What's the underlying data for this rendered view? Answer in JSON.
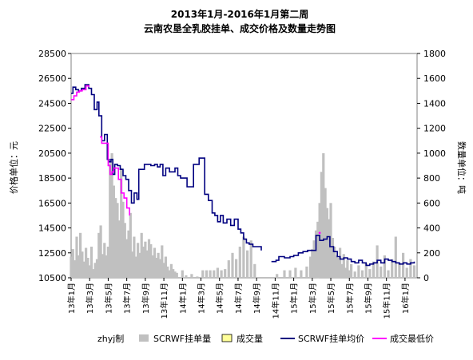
{
  "chart_data": {
    "type": "bar+line",
    "title_line1": "2013年1月-2016年1月第二周",
    "title_line2": "云南农垦全乳胶挂单、成交价格及数量走势图",
    "ylabel_left": "价格单位：元",
    "ylabel_right": "数量单位：吨",
    "y_left_range": [
      10500,
      28500
    ],
    "y_left_ticks": [
      "28500",
      "26500",
      "24500",
      "22500",
      "20500",
      "18500",
      "16500",
      "14500",
      "12500",
      "10500"
    ],
    "y_right_range": [
      0,
      1800
    ],
    "y_right_ticks": [
      "1800",
      "1600",
      "1400",
      "1200",
      "1000",
      "800",
      "600",
      "400",
      "200",
      "0"
    ],
    "x_ticks": [
      "13年1月",
      "13年3月",
      "13年5月",
      "13年7月",
      "13年9月",
      "13年11月",
      "14年1月",
      "14年3月",
      "14年5月",
      "14年7月",
      "14年9月",
      "14年11月",
      "15年1月",
      "15年3月",
      "15年5月",
      "15年7月",
      "15年9月",
      "15年11月",
      "16年1月"
    ],
    "legend": {
      "watermark": "zhyj制",
      "items": [
        {
          "name": "SCRWF挂单量",
          "color": "#c0c0c0",
          "kind": "bar"
        },
        {
          "name": "成交量",
          "color": "#ffff99",
          "kind": "bar"
        },
        {
          "name": "SCRWF挂单均价",
          "color": "#000080",
          "kind": "line"
        },
        {
          "name": "成交最低价",
          "color": "#ff00ff",
          "kind": "line"
        }
      ]
    },
    "series_listing_avg_price": [
      [
        0,
        25300
      ],
      [
        0.2,
        25800
      ],
      [
        0.5,
        25600
      ],
      [
        0.8,
        25500
      ],
      [
        1.1,
        25700
      ],
      [
        1.5,
        26000
      ],
      [
        1.9,
        25700
      ],
      [
        2.2,
        25200
      ],
      [
        2.5,
        24000
      ],
      [
        2.8,
        24600
      ],
      [
        3.0,
        23500
      ],
      [
        3.3,
        21500
      ],
      [
        3.6,
        22000
      ],
      [
        3.9,
        20000
      ],
      [
        4.1,
        19800
      ],
      [
        4.3,
        20000
      ],
      [
        4.5,
        18800
      ],
      [
        4.7,
        19600
      ],
      [
        5.0,
        19500
      ],
      [
        5.3,
        19200
      ],
      [
        5.6,
        18700
      ],
      [
        5.9,
        18400
      ],
      [
        6.2,
        17500
      ],
      [
        6.5,
        16500
      ],
      [
        6.8,
        17300
      ],
      [
        7.1,
        16800
      ],
      [
        7.3,
        19200
      ],
      [
        7.6,
        19200
      ],
      [
        7.9,
        19600
      ],
      [
        8.2,
        19600
      ],
      [
        8.6,
        19500
      ],
      [
        9.0,
        19600
      ],
      [
        9.3,
        19400
      ],
      [
        9.6,
        19600
      ],
      [
        9.9,
        18700
      ],
      [
        10.2,
        19300
      ],
      [
        10.6,
        19000
      ],
      [
        10.9,
        19000
      ],
      [
        11.2,
        19300
      ],
      [
        11.5,
        18700
      ],
      [
        11.8,
        18500
      ],
      [
        12.5,
        17800
      ],
      [
        13.2,
        19600
      ],
      [
        13.8,
        20100
      ],
      [
        14.4,
        17200
      ],
      [
        14.8,
        16700
      ],
      [
        15.2,
        15700
      ],
      [
        15.5,
        15500
      ],
      [
        15.8,
        15000
      ],
      [
        16.1,
        15500
      ],
      [
        16.4,
        14900
      ],
      [
        16.8,
        15200
      ],
      [
        17.2,
        14700
      ],
      [
        17.6,
        15200
      ],
      [
        18.0,
        14400
      ],
      [
        18.3,
        14100
      ],
      [
        18.6,
        13600
      ],
      [
        18.9,
        13300
      ],
      [
        19.2,
        13200
      ],
      [
        19.6,
        13000
      ],
      [
        20.5,
        12700
      ],
      [
        21.6,
        11800
      ],
      [
        22.1,
        11900
      ],
      [
        22.4,
        12200
      ],
      [
        23.0,
        12100
      ],
      [
        23.6,
        12200
      ],
      [
        24.0,
        12300
      ],
      [
        24.5,
        12500
      ],
      [
        25.0,
        12600
      ],
      [
        25.5,
        12700
      ],
      [
        26.0,
        12700
      ],
      [
        26.4,
        13900
      ],
      [
        26.8,
        13500
      ],
      [
        27.2,
        13600
      ],
      [
        27.6,
        13800
      ],
      [
        27.9,
        13000
      ],
      [
        28.3,
        12600
      ],
      [
        28.7,
        12200
      ],
      [
        29.0,
        12000
      ],
      [
        29.4,
        12100
      ],
      [
        29.8,
        12000
      ],
      [
        30.2,
        11800
      ],
      [
        30.6,
        11700
      ],
      [
        31.0,
        11900
      ],
      [
        31.4,
        11700
      ],
      [
        31.8,
        11500
      ],
      [
        32.2,
        11600
      ],
      [
        32.6,
        11700
      ],
      [
        33.0,
        11900
      ],
      [
        33.4,
        11700
      ],
      [
        33.8,
        12000
      ],
      [
        34.2,
        11900
      ],
      [
        34.6,
        11800
      ],
      [
        35.0,
        11700
      ],
      [
        35.4,
        11600
      ],
      [
        35.8,
        11700
      ],
      [
        36.2,
        11600
      ],
      [
        36.6,
        11700
      ],
      [
        37.0,
        11800
      ]
    ],
    "series_min_deal_price": [
      [
        0.0,
        24800
      ],
      [
        0.3,
        25100
      ],
      [
        0.6,
        25400
      ],
      [
        0.9,
        25500
      ],
      [
        1.2,
        25600
      ],
      [
        1.6,
        25900
      ],
      [
        1.9,
        25800
      ],
      [
        3.1,
        21800
      ],
      [
        3.3,
        21300
      ],
      [
        4.0,
        19500
      ],
      [
        4.2,
        18800
      ],
      [
        4.4,
        19000
      ],
      [
        4.6,
        19300
      ],
      [
        5.1,
        18400
      ],
      [
        5.4,
        17300
      ],
      [
        5.7,
        16900
      ],
      [
        6.0,
        16100
      ],
      [
        6.3,
        15500
      ],
      [
        26.8,
        14100
      ]
    ],
    "series_listing_volume": [
      [
        0.0,
        170
      ],
      [
        0.2,
        230
      ],
      [
        0.4,
        140
      ],
      [
        0.6,
        330
      ],
      [
        0.8,
        180
      ],
      [
        1.0,
        360
      ],
      [
        1.2,
        210
      ],
      [
        1.4,
        130
      ],
      [
        1.6,
        240
      ],
      [
        1.8,
        160
      ],
      [
        2.0,
        100
      ],
      [
        2.2,
        250
      ],
      [
        2.4,
        70
      ],
      [
        2.6,
        120
      ],
      [
        2.8,
        150
      ],
      [
        3.0,
        360
      ],
      [
        3.2,
        420
      ],
      [
        3.4,
        190
      ],
      [
        3.6,
        280
      ],
      [
        3.8,
        180
      ],
      [
        4.0,
        250
      ],
      [
        4.2,
        920
      ],
      [
        4.4,
        1000
      ],
      [
        4.6,
        740
      ],
      [
        4.8,
        640
      ],
      [
        5.0,
        600
      ],
      [
        5.2,
        460
      ],
      [
        5.4,
        880
      ],
      [
        5.6,
        610
      ],
      [
        5.8,
        440
      ],
      [
        6.0,
        310
      ],
      [
        6.2,
        380
      ],
      [
        6.4,
        520
      ],
      [
        6.6,
        210
      ],
      [
        6.8,
        330
      ],
      [
        7.0,
        170
      ],
      [
        7.2,
        280
      ],
      [
        7.4,
        200
      ],
      [
        7.6,
        360
      ],
      [
        7.8,
        250
      ],
      [
        8.0,
        290
      ],
      [
        8.2,
        220
      ],
      [
        8.4,
        310
      ],
      [
        8.6,
        270
      ],
      [
        8.8,
        180
      ],
      [
        9.0,
        240
      ],
      [
        9.2,
        160
      ],
      [
        9.4,
        200
      ],
      [
        9.6,
        150
      ],
      [
        9.8,
        260
      ],
      [
        10.0,
        120
      ],
      [
        10.2,
        170
      ],
      [
        10.4,
        90
      ],
      [
        10.6,
        60
      ],
      [
        10.8,
        110
      ],
      [
        11.0,
        70
      ],
      [
        11.2,
        50
      ],
      [
        11.4,
        40
      ],
      [
        12.0,
        60
      ],
      [
        12.4,
        20
      ],
      [
        13.0,
        30
      ],
      [
        13.6,
        10
      ],
      [
        14.2,
        60
      ],
      [
        14.6,
        60
      ],
      [
        15.0,
        60
      ],
      [
        15.4,
        60
      ],
      [
        15.8,
        80
      ],
      [
        16.2,
        60
      ],
      [
        16.6,
        70
      ],
      [
        17.0,
        140
      ],
      [
        17.4,
        200
      ],
      [
        17.8,
        150
      ],
      [
        18.2,
        250
      ],
      [
        18.6,
        330
      ],
      [
        19.0,
        220
      ],
      [
        19.4,
        300
      ],
      [
        19.8,
        110
      ],
      [
        22.2,
        30
      ],
      [
        23.0,
        60
      ],
      [
        23.6,
        60
      ],
      [
        24.2,
        80
      ],
      [
        24.8,
        60
      ],
      [
        25.4,
        90
      ],
      [
        25.8,
        170
      ],
      [
        26.0,
        230
      ],
      [
        26.2,
        300
      ],
      [
        26.4,
        380
      ],
      [
        26.6,
        450
      ],
      [
        26.8,
        600
      ],
      [
        27.0,
        850
      ],
      [
        27.2,
        1000
      ],
      [
        27.4,
        720
      ],
      [
        27.6,
        560
      ],
      [
        27.8,
        470
      ],
      [
        28.0,
        600
      ],
      [
        28.2,
        320
      ],
      [
        28.4,
        250
      ],
      [
        28.6,
        180
      ],
      [
        28.8,
        160
      ],
      [
        29.0,
        240
      ],
      [
        29.2,
        110
      ],
      [
        29.4,
        190
      ],
      [
        29.6,
        80
      ],
      [
        29.8,
        140
      ],
      [
        30.0,
        60
      ],
      [
        30.2,
        110
      ],
      [
        30.6,
        50
      ],
      [
        31.0,
        100
      ],
      [
        31.4,
        60
      ],
      [
        31.8,
        120
      ],
      [
        32.2,
        70
      ],
      [
        32.6,
        130
      ],
      [
        33.0,
        260
      ],
      [
        33.4,
        90
      ],
      [
        33.8,
        180
      ],
      [
        34.2,
        60
      ],
      [
        34.6,
        150
      ],
      [
        35.0,
        330
      ],
      [
        35.4,
        120
      ],
      [
        35.8,
        200
      ],
      [
        36.2,
        80
      ],
      [
        36.6,
        150
      ],
      [
        37.0,
        100
      ]
    ]
  }
}
